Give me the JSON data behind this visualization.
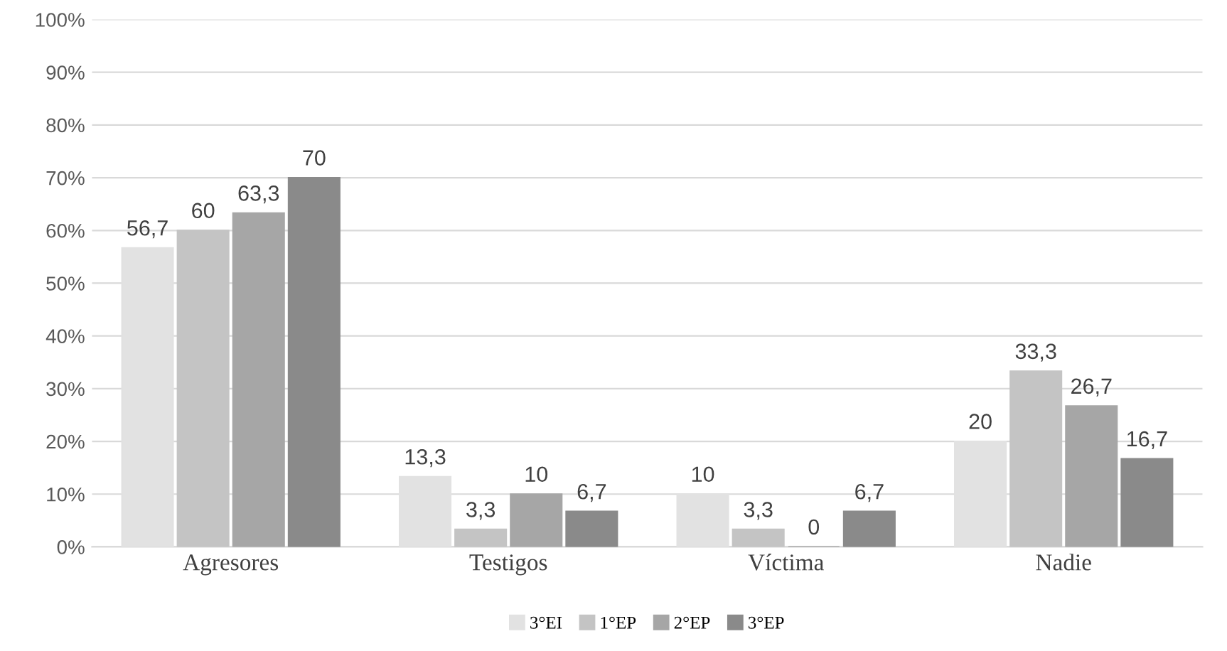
{
  "chart_data": {
    "type": "bar",
    "categories": [
      "Agresores",
      "Testigos",
      "Víctima",
      "Nadie"
    ],
    "series": [
      {
        "name": "3°EI",
        "color": "#e2e2e2",
        "values": [
          56.7,
          13.3,
          10,
          20
        ],
        "value_labels": [
          "56,7",
          "13,3",
          "10",
          "20"
        ]
      },
      {
        "name": "1°EP",
        "color": "#c4c4c4",
        "values": [
          60,
          3.3,
          3.3,
          33.3
        ],
        "value_labels": [
          "60",
          "3,3",
          "3,3",
          "33,3"
        ]
      },
      {
        "name": "2°EP",
        "color": "#a6a6a6",
        "values": [
          63.3,
          10,
          0,
          26.7
        ],
        "value_labels": [
          "63,3",
          "10",
          "0",
          "26,7"
        ]
      },
      {
        "name": "3°EP",
        "color": "#8a8a8a",
        "values": [
          70,
          6.7,
          6.7,
          16.7
        ],
        "value_labels": [
          "70",
          "6,7",
          "6,7",
          "16,7"
        ]
      }
    ],
    "ylim": [
      0,
      100
    ],
    "yticks": [
      {
        "value": 0,
        "label": "0%"
      },
      {
        "value": 10,
        "label": "10%"
      },
      {
        "value": 20,
        "label": "20%"
      },
      {
        "value": 30,
        "label": "30%"
      },
      {
        "value": 40,
        "label": "40%"
      },
      {
        "value": 50,
        "label": "50%"
      },
      {
        "value": 60,
        "label": "60%"
      },
      {
        "value": 70,
        "label": "70%"
      },
      {
        "value": 80,
        "label": "80%"
      },
      {
        "value": 90,
        "label": "90%"
      },
      {
        "value": 100,
        "label": "100%"
      }
    ],
    "grid": "y",
    "legend": "bottom"
  }
}
